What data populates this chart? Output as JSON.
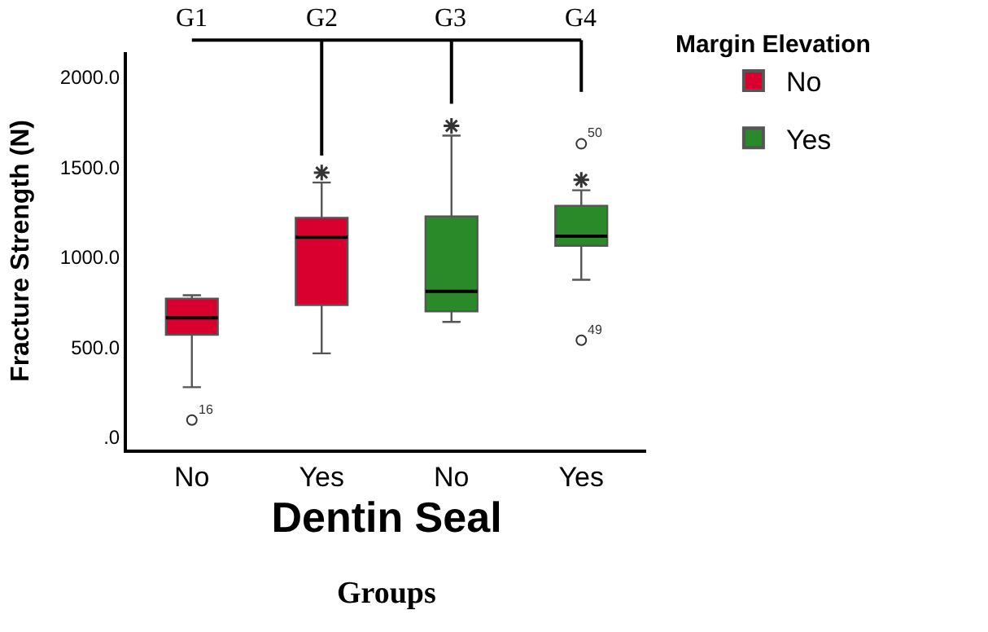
{
  "chart_data": {
    "type": "box",
    "categories": [
      "No",
      "Yes",
      "No",
      "Yes"
    ],
    "xlabel": "Dentin Seal",
    "ylabel": "Fracture Strength (N)",
    "legend_title": "Margin Elevation",
    "legend": "top right",
    "ylim": [
      -70,
      2140
    ],
    "yticks": [
      {
        "value": 0,
        "label": ".0"
      },
      {
        "value": 500,
        "label": "500.0"
      },
      {
        "value": 1000,
        "label": "1000.0"
      },
      {
        "value": 1500,
        "label": "1500.0"
      },
      {
        "value": 2000,
        "label": "2000.0"
      }
    ],
    "annotations": [
      "G1",
      "G2",
      "G3",
      "G4",
      "Groups",
      "16",
      "50",
      "49"
    ],
    "series": [
      {
        "name": "No",
        "color": "#d9002f",
        "boxes": [
          {
            "low": 277,
            "q1": 568,
            "median": 662,
            "q3": 769,
            "high": 788,
            "outliers": [
              94
            ]
          },
          {
            "low": 465,
            "q1": 734,
            "median": 1111,
            "q3": 1219,
            "high": 1415,
            "outliers": [
              1470
            ]
          },
          null,
          null
        ]
      },
      {
        "name": "Yes",
        "color": "#2a8a2a",
        "boxes": [
          null,
          null,
          {
            "low": 640,
            "q1": 699,
            "median": 810,
            "q3": 1227,
            "high": 1676,
            "outliers": [
              1730
            ]
          },
          {
            "low": 874,
            "q1": 1063,
            "median": 1116,
            "q3": 1286,
            "high": 1372,
            "outliers": [
              1630,
              1430,
              538
            ]
          }
        ]
      }
    ]
  }
}
